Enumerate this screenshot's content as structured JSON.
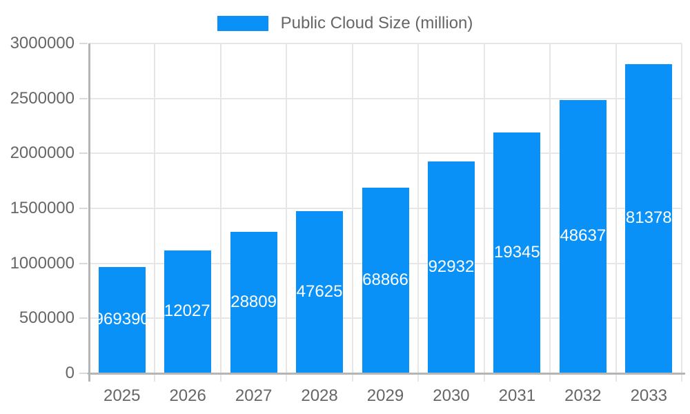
{
  "legend": {
    "label": "Public Cloud Size (million)"
  },
  "colors": {
    "bar": "#0a91f8",
    "bar_label": "#ffffff",
    "axis_text": "#666666",
    "gridline": "#e6e6e6",
    "axis_line": "#b5b5b5",
    "tick_mark": "#d9d9d9"
  },
  "chart_data": {
    "type": "bar",
    "title": "Public Cloud Size (million)",
    "series_name": "Public Cloud Size (million)",
    "categories": [
      "2025",
      "2026",
      "2027",
      "2028",
      "2029",
      "2030",
      "2031",
      "2032",
      "2033"
    ],
    "values": [
      969390,
      1120273,
      1288097,
      1476255,
      1688660,
      1929325,
      2193456,
      2486377,
      2813789
    ],
    "bar_value_labels_visible_fragments": [
      "969390",
      "12027",
      "28809",
      "47625",
      "68866",
      "92932",
      "19345",
      "48637",
      "81378"
    ],
    "xlabel": "",
    "ylabel": "",
    "ylim": [
      0,
      3000000
    ],
    "ytick_step": 500000,
    "yticks": [
      0,
      500000,
      1000000,
      1500000,
      2000000,
      2500000,
      3000000
    ],
    "grid": true,
    "legend_position": "top",
    "value_labels": "centered-inside-bars-clipped-to-bar-width"
  }
}
